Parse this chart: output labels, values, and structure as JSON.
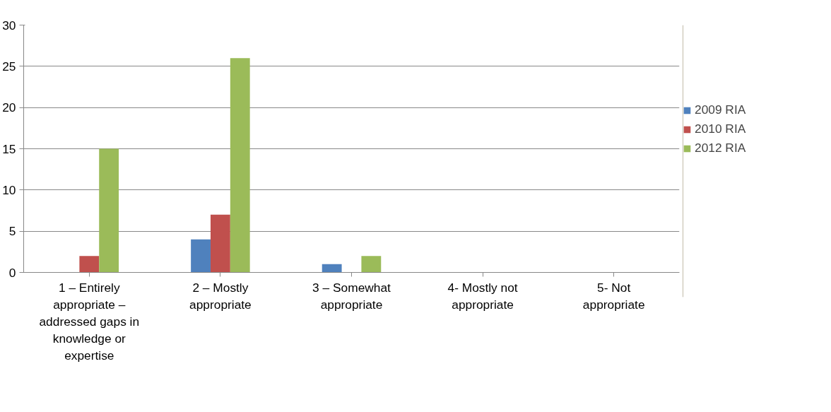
{
  "chart_data": {
    "type": "bar",
    "categories": [
      "1 – Entirely appropriate – addressed gaps in knowledge or expertise",
      "2 – Mostly appropriate",
      "3 – Somewhat appropriate",
      "4- Mostly not appropriate",
      "5- Not appropriate"
    ],
    "series": [
      {
        "name": "2009 RIA",
        "color": "#4f81bd",
        "values": [
          0,
          4,
          1,
          0,
          0
        ]
      },
      {
        "name": "2010 RIA",
        "color": "#c0504d",
        "values": [
          2,
          7,
          0,
          0,
          0
        ]
      },
      {
        "name": "2012 RIA",
        "color": "#9bbb59",
        "values": [
          15,
          26,
          2,
          0,
          0
        ]
      }
    ],
    "ylim": [
      0,
      30
    ],
    "yticks": [
      0,
      5,
      10,
      15,
      20,
      25,
      30
    ],
    "grid": "y",
    "legend": "right"
  }
}
